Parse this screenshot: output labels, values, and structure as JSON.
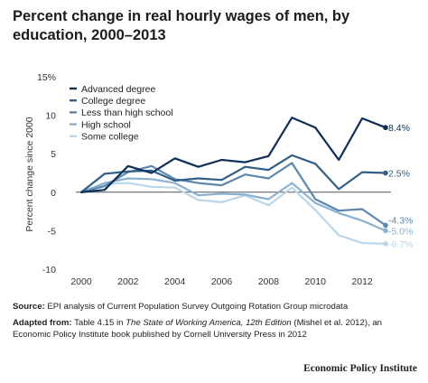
{
  "header": {
    "title": "Percent change in real hourly wages of men, by education, 2000–2013"
  },
  "chart_data": {
    "type": "line",
    "ylabel": "Percent change since 2000",
    "xlabel": "",
    "ylim": [
      -10,
      15
    ],
    "yticks": [
      "15%",
      "10",
      "5",
      "0",
      "-5",
      "-10"
    ],
    "xlim": [
      2000,
      2013
    ],
    "xticks": [
      "2000",
      "2002",
      "2004",
      "2006",
      "2008",
      "2010",
      "2012"
    ],
    "x": [
      2000,
      2001,
      2002,
      2003,
      2004,
      2005,
      2006,
      2007,
      2008,
      2009,
      2010,
      2011,
      2012,
      2013
    ],
    "legend_position": "top-left",
    "series": [
      {
        "name": "Advanced degree",
        "color": "#0b2f5a",
        "values": [
          0,
          0.3,
          3.4,
          2.5,
          4.4,
          3.3,
          4.2,
          3.9,
          4.7,
          9.7,
          8.4,
          4.2,
          9.6,
          8.4
        ],
        "end_label": "8.4%"
      },
      {
        "name": "College degree",
        "color": "#2f5f88",
        "values": [
          0,
          2.4,
          2.7,
          2.8,
          1.5,
          1.8,
          1.6,
          3.3,
          2.9,
          4.8,
          3.7,
          0.4,
          2.6,
          2.5
        ],
        "end_label": "2.5%"
      },
      {
        "name": "Less than high school",
        "color": "#5d87ad",
        "values": [
          0,
          0.8,
          2.6,
          3.4,
          1.7,
          1.2,
          0.9,
          2.3,
          1.8,
          3.8,
          -0.9,
          -2.4,
          -2.2,
          -4.3
        ],
        "end_label": "-4.3%"
      },
      {
        "name": "High school",
        "color": "#8bb1d1",
        "values": [
          0,
          1.2,
          1.8,
          1.7,
          1.2,
          -0.4,
          -0.2,
          -0.3,
          -0.9,
          1.2,
          -1.4,
          -2.7,
          -3.7,
          -5.0
        ],
        "end_label": "-5.0%"
      },
      {
        "name": "Some college",
        "color": "#b8d5ea",
        "values": [
          0,
          1.1,
          1.2,
          0.7,
          0.6,
          -1.0,
          -1.3,
          -0.4,
          -1.7,
          0.6,
          -2.3,
          -5.6,
          -6.6,
          -6.7
        ],
        "end_label": "-6.7%"
      }
    ]
  },
  "notes": {
    "source_label": "Source:",
    "source_text": "EPI analysis of Current Population Survey Outgoing Rotation Group microdata",
    "adapted_label": "Adapted from:",
    "adapted_text_1": "Table 4.15 in ",
    "adapted_book": "The State of Working America, 12th Edition",
    "adapted_text_2": " (Mishel et al. 2012), an Economic Policy Institute book published by Cornell University Press in 2012"
  },
  "footer": {
    "org": "Economic Policy Institute"
  }
}
